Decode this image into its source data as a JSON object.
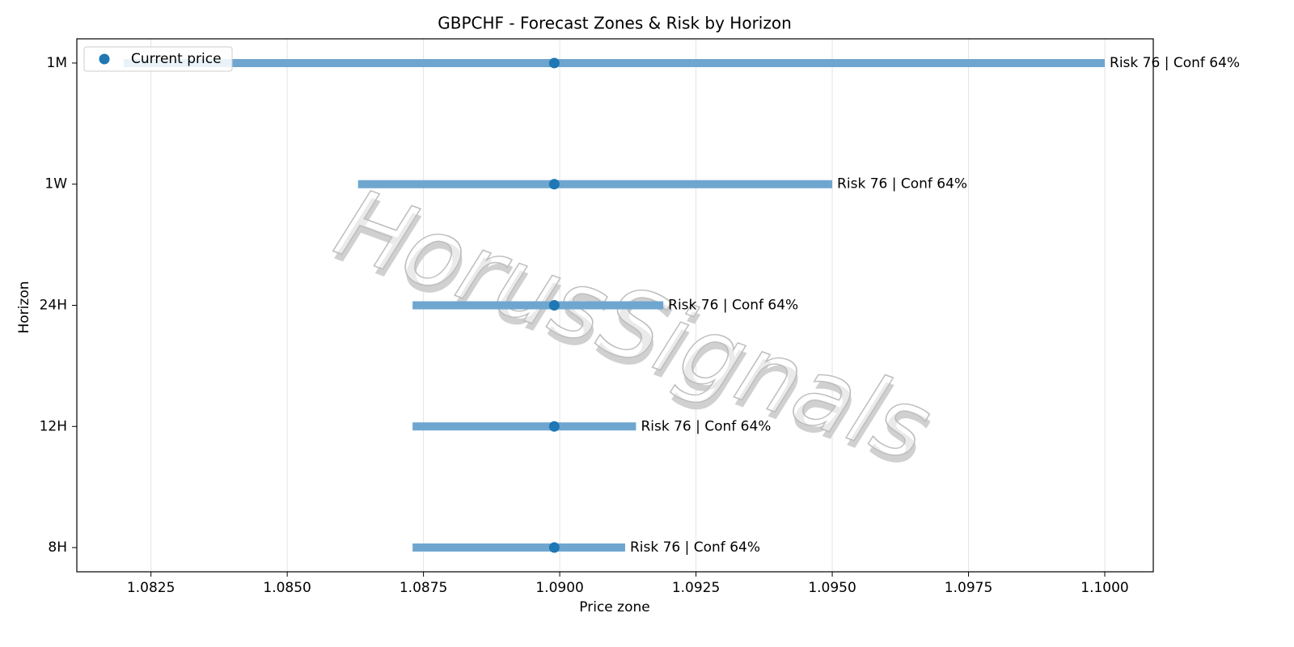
{
  "chart_data": {
    "type": "range",
    "title": "GBPCHF - Forecast Zones & Risk by Horizon",
    "xlabel": "Price zone",
    "ylabel": "Horizon",
    "categories": [
      "8H",
      "12H",
      "24H",
      "1W",
      "1M"
    ],
    "low": [
      1.0873,
      1.0873,
      1.0873,
      1.0863,
      1.082
    ],
    "high": [
      1.0912,
      1.0914,
      1.0919,
      1.095,
      1.1
    ],
    "bar_color": "#6fa6d0",
    "series": [
      {
        "name": "Current price",
        "color": "#1f77b4",
        "values": [
          1.0899,
          1.0899,
          1.0899,
          1.0899,
          1.0899
        ]
      }
    ],
    "labels": [
      "Risk 76 | Conf 64%",
      "Risk 76 | Conf 64%",
      "Risk 76 | Conf 64%",
      "Risk 76 | Conf 64%",
      "Risk 76 | Conf 64%"
    ],
    "xlim": [
      1.08114,
      1.10089
    ],
    "xticks": [
      1.0825,
      {
        "value": 1.085,
        "label": "1.0850"
      },
      1.0875,
      {
        "value": 1.09,
        "label": "1.0900"
      },
      1.0925,
      {
        "value": 1.095,
        "label": "1.0950"
      },
      1.0975,
      {
        "value": 1.1,
        "label": "1.1000"
      }
    ],
    "grid": true,
    "legend": "upper left",
    "watermark": "HorusSignals"
  }
}
